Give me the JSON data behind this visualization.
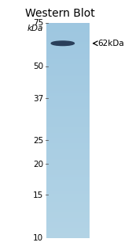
{
  "title": "Western Blot",
  "background_color": "#ffffff",
  "gel_color": "#a8c8de",
  "band_color": "#2a3f5a",
  "band_label": "← 62kDa",
  "ladder_marks": [
    75,
    50,
    37,
    25,
    20,
    15,
    10
  ],
  "band_kda": 62,
  "y_min": 7,
  "y_max": 80,
  "title_fontsize": 10,
  "tick_fontsize": 7.5,
  "arrow_label_fontsize": 7.5,
  "kdal_label": "kDa"
}
